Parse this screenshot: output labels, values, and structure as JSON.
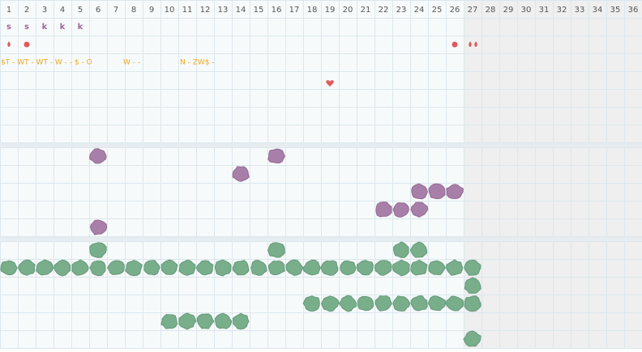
{
  "header": {
    "columns": [
      "1",
      "2",
      "3",
      "4",
      "5",
      "6",
      "7",
      "8",
      "9",
      "10",
      "11",
      "12",
      "13",
      "14",
      "15",
      "16",
      "17",
      "18",
      "19",
      "20",
      "21",
      "22",
      "23",
      "24",
      "25",
      "26",
      "27",
      "28",
      "29",
      "30",
      "31",
      "32",
      "33",
      "34",
      "35",
      "36"
    ]
  },
  "letters": [
    "s",
    "s",
    "k",
    "k",
    "k"
  ],
  "notes": [
    "$T - WT - WT - W - - $ - O",
    "W - -",
    "N - ZW$ -"
  ]
}
